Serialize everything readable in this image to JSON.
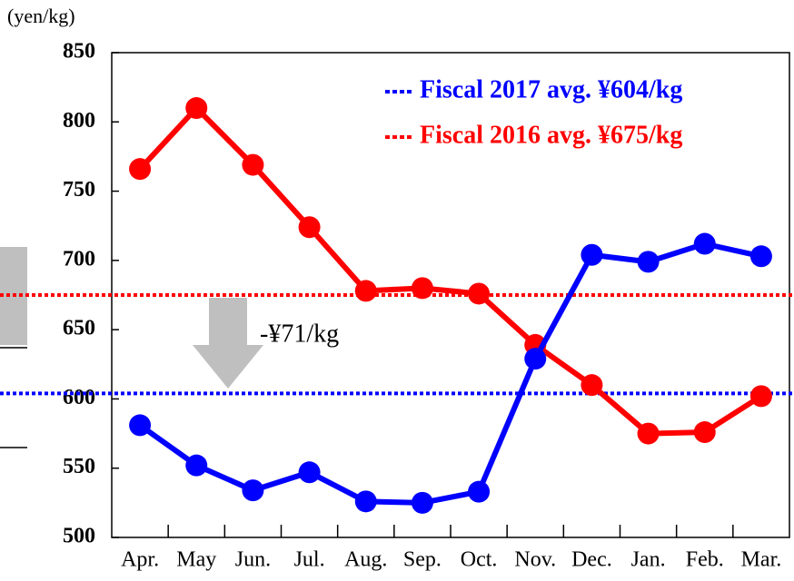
{
  "chart_data": {
    "type": "line",
    "y_unit": "(yen/kg)",
    "categories": [
      "Apr.",
      "May",
      "Jun.",
      "Jul.",
      "Aug.",
      "Sep.",
      "Oct.",
      "Nov.",
      "Dec.",
      "Jan.",
      "Feb.",
      "Mar."
    ],
    "series": [
      {
        "color": "#ff0000",
        "values": [
          766,
          810,
          769,
          724,
          678,
          680,
          676,
          639,
          610,
          575,
          576,
          602
        ]
      },
      {
        "color": "#0000ff",
        "values": [
          581,
          552,
          534,
          547,
          526,
          525,
          533,
          629,
          704,
          699,
          712,
          703
        ]
      }
    ],
    "averages": [
      {
        "label": "Fiscal 2017 avg. ¥604/kg",
        "value": 604,
        "color": "#0000ff"
      },
      {
        "label": "Fiscal 2016 avg. ¥675/kg",
        "value": 675,
        "color": "#ff0000"
      }
    ],
    "annotation": "-¥71/kg",
    "ylim": [
      500,
      850
    ],
    "yticks": [
      500,
      550,
      600,
      650,
      700,
      750,
      800,
      850
    ]
  }
}
